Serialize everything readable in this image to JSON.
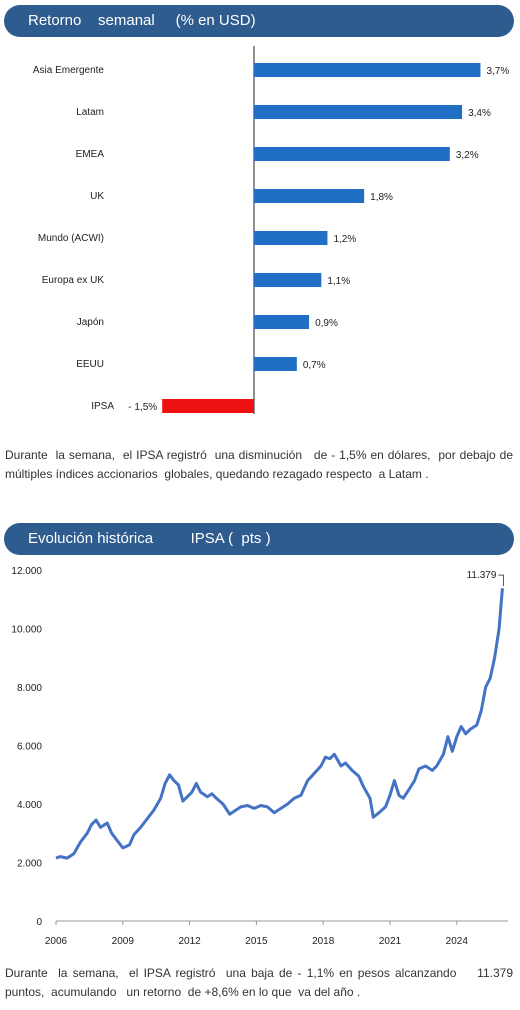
{
  "section1": {
    "title": "Retorno    semanal     (% en USD)",
    "paragraph": "Durante  la semana,  el IPSA registró  una disminución   de - 1,5% en dólares,  por debajo de múltiples índices accionarios  globales, quedando rezagado respecto  a Latam ."
  },
  "section2": {
    "title": "Evolución histórica         IPSA (  pts )",
    "paragraph": "Durante  la semana,  el IPSA registró  una baja de - 1,1% en pesos alcanzando    11.379 puntos,  acumulando   un retorno  de +8,6% en lo que  va del año ."
  },
  "colors": {
    "banner": "#2e5c8f",
    "positive": "#1f6fc5",
    "negative": "#ee1111",
    "line": "#4472c4"
  },
  "chart_data": [
    {
      "type": "bar",
      "orientation": "horizontal",
      "categories": [
        "Asia Emergente",
        "Latam",
        "EMEA",
        "UK",
        "Mundo (ACWI)",
        "Europa ex UK",
        "Japón",
        "EEUU",
        "IPSA"
      ],
      "values": [
        3.7,
        3.4,
        3.2,
        1.8,
        1.2,
        1.1,
        0.9,
        0.7,
        -1.5
      ],
      "labels": [
        "3,7%",
        "3,4%",
        "3,2%",
        "1,8%",
        "1,2%",
        "1,1%",
        "0,9%",
        "0,7%",
        "- 1,5%"
      ]
    },
    {
      "type": "line",
      "series": [
        {
          "values": [
            [
              2006.0,
              2150
            ],
            [
              2006.2,
              2200
            ],
            [
              2006.5,
              2150
            ],
            [
              2006.8,
              2300
            ],
            [
              2007.1,
              2700
            ],
            [
              2007.4,
              3000
            ],
            [
              2007.6,
              3300
            ],
            [
              2007.8,
              3450
            ],
            [
              2008.0,
              3200
            ],
            [
              2008.3,
              3350
            ],
            [
              2008.5,
              3000
            ],
            [
              2008.8,
              2700
            ],
            [
              2009.0,
              2500
            ],
            [
              2009.3,
              2600
            ],
            [
              2009.5,
              2950
            ],
            [
              2009.8,
              3200
            ],
            [
              2010.1,
              3500
            ],
            [
              2010.4,
              3800
            ],
            [
              2010.7,
              4200
            ],
            [
              2010.9,
              4700
            ],
            [
              2011.1,
              5000
            ],
            [
              2011.3,
              4800
            ],
            [
              2011.5,
              4650
            ],
            [
              2011.7,
              4100
            ],
            [
              2011.9,
              4250
            ],
            [
              2012.1,
              4400
            ],
            [
              2012.3,
              4700
            ],
            [
              2012.5,
              4400
            ],
            [
              2012.8,
              4250
            ],
            [
              2013.0,
              4350
            ],
            [
              2013.2,
              4200
            ],
            [
              2013.5,
              4000
            ],
            [
              2013.8,
              3650
            ],
            [
              2014.0,
              3750
            ],
            [
              2014.3,
              3900
            ],
            [
              2014.6,
              3950
            ],
            [
              2014.9,
              3850
            ],
            [
              2015.2,
              3950
            ],
            [
              2015.5,
              3900
            ],
            [
              2015.8,
              3700
            ],
            [
              2016.1,
              3850
            ],
            [
              2016.4,
              4000
            ],
            [
              2016.7,
              4200
            ],
            [
              2017.0,
              4300
            ],
            [
              2017.3,
              4800
            ],
            [
              2017.6,
              5050
            ],
            [
              2017.9,
              5300
            ],
            [
              2018.1,
              5600
            ],
            [
              2018.3,
              5550
            ],
            [
              2018.5,
              5700
            ],
            [
              2018.8,
              5300
            ],
            [
              2019.0,
              5400
            ],
            [
              2019.3,
              5150
            ],
            [
              2019.6,
              4950
            ],
            [
              2019.8,
              4600
            ],
            [
              2019.95,
              4400
            ],
            [
              2020.1,
              4200
            ],
            [
              2020.25,
              3550
            ],
            [
              2020.5,
              3700
            ],
            [
              2020.8,
              3900
            ],
            [
              2021.0,
              4300
            ],
            [
              2021.2,
              4800
            ],
            [
              2021.4,
              4300
            ],
            [
              2021.6,
              4200
            ],
            [
              2021.9,
              4550
            ],
            [
              2022.1,
              4800
            ],
            [
              2022.3,
              5200
            ],
            [
              2022.6,
              5300
            ],
            [
              2022.9,
              5150
            ],
            [
              2023.1,
              5300
            ],
            [
              2023.4,
              5700
            ],
            [
              2023.6,
              6300
            ],
            [
              2023.8,
              5800
            ],
            [
              2024.0,
              6300
            ],
            [
              2024.2,
              6650
            ],
            [
              2024.4,
              6400
            ],
            [
              2024.6,
              6550
            ],
            [
              2024.9,
              6700
            ],
            [
              2025.1,
              7200
            ],
            [
              2025.3,
              8000
            ],
            [
              2025.5,
              8300
            ],
            [
              2025.7,
              9000
            ],
            [
              2025.9,
              10000
            ],
            [
              2026.05,
              11379
            ]
          ]
        }
      ],
      "xticks": [
        "2006",
        "2009",
        "2012",
        "2015",
        "2018",
        "2021",
        "2024"
      ],
      "yticks": [
        "0",
        "2.000",
        "4.000",
        "6.000",
        "8.000",
        "10.000",
        "12.000"
      ],
      "xlim": [
        2006,
        2026.3
      ],
      "ylim": [
        0,
        12000
      ],
      "last_label": "11.379"
    }
  ]
}
